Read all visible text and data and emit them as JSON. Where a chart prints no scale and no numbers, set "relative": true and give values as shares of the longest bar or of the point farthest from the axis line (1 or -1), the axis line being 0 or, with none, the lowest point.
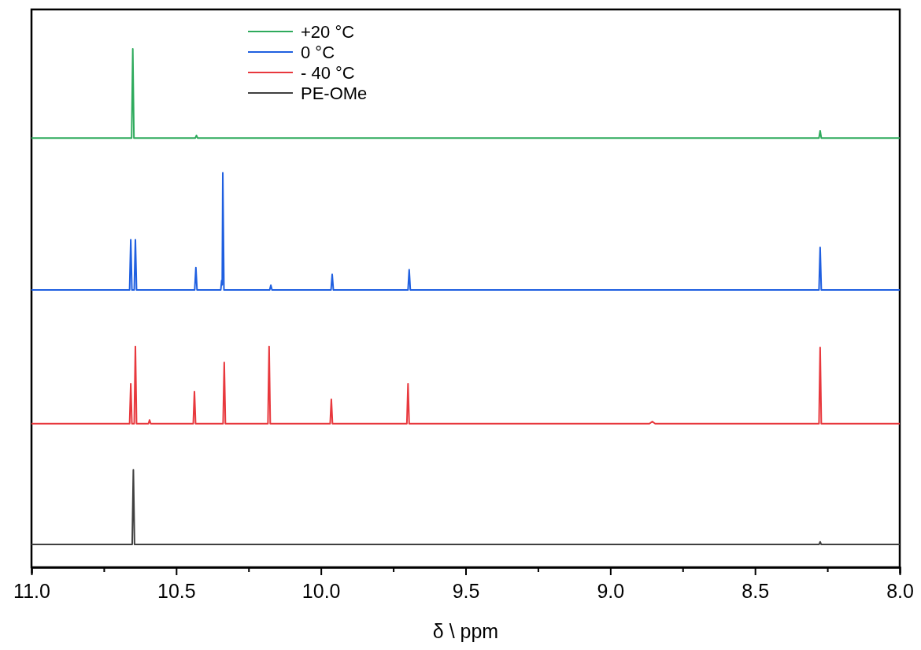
{
  "chart_data": {
    "type": "line",
    "xlabel": "δ \\ ppm",
    "relative": true,
    "tick_labels": "x",
    "legend": "top",
    "grid": false,
    "xlim": [
      11.0,
      8.0
    ],
    "xticks": [
      {
        "value": 11,
        "label": "11.0"
      },
      {
        "value": 10.75,
        "label": null
      },
      {
        "value": 10.5,
        "label": "10.5"
      },
      {
        "value": 10.25,
        "label": null
      },
      {
        "value": 10,
        "label": "10.0"
      },
      {
        "value": 9.75,
        "label": null
      },
      {
        "value": 9.5,
        "label": "9.5"
      },
      {
        "value": 9.25,
        "label": null
      },
      {
        "value": 9,
        "label": "9.0"
      },
      {
        "value": 8.75,
        "label": null
      },
      {
        "value": 8.5,
        "label": "8.5"
      },
      {
        "value": 8.25,
        "label": null
      },
      {
        "value": 8,
        "label": "8.0"
      }
    ],
    "series": [
      {
        "name": "+20 °C",
        "color": "#2eaa5c",
        "x": [
          11.0,
          10.654,
          10.65,
          10.646,
          10.434,
          10.43,
          10.426,
          8.279,
          8.275,
          8.271,
          8.0
        ],
        "values": [
          0.828,
          0.828,
          1,
          0.828,
          0.828,
          0.833,
          0.828,
          0.828,
          0.842,
          0.828,
          0.828
        ]
      },
      {
        "name": "0 °C",
        "color": "#1f5fe0",
        "x": [
          11.0,
          10.661,
          10.657,
          10.653,
          10.645,
          10.641,
          10.637,
          10.436,
          10.432,
          10.428,
          10.346,
          10.343,
          10.341,
          10.339,
          10.335,
          10.177,
          10.173,
          10.169,
          9.965,
          9.961,
          9.957,
          9.699,
          9.695,
          9.691,
          8.279,
          8.275,
          8.271,
          8.0
        ],
        "values": [
          0.535,
          0.535,
          0.632,
          0.535,
          0.535,
          0.632,
          0.535,
          0.535,
          0.578,
          0.535,
          0.535,
          0.553,
          0.545,
          0.761,
          0.535,
          0.535,
          0.544,
          0.535,
          0.535,
          0.565,
          0.535,
          0.535,
          0.574,
          0.535,
          0.535,
          0.617,
          0.535,
          0.535
        ]
      },
      {
        "name": "- 40 °C",
        "color": "#e8383d",
        "x": [
          11.0,
          10.661,
          10.657,
          10.653,
          10.645,
          10.641,
          10.637,
          10.596,
          10.592,
          10.588,
          10.441,
          10.437,
          10.433,
          10.338,
          10.334,
          10.33,
          10.183,
          10.179,
          10.175,
          9.968,
          9.964,
          9.96,
          9.703,
          9.699,
          9.695,
          8.865,
          8.855,
          8.845,
          8.279,
          8.275,
          8.271,
          8.0
        ],
        "values": [
          0.277,
          0.277,
          0.354,
          0.277,
          0.277,
          0.426,
          0.277,
          0.277,
          0.284,
          0.277,
          0.277,
          0.339,
          0.277,
          0.277,
          0.395,
          0.277,
          0.277,
          0.426,
          0.277,
          0.277,
          0.324,
          0.277,
          0.277,
          0.354,
          0.277,
          0.277,
          0.281,
          0.277,
          0.277,
          0.424,
          0.277,
          0.277
        ]
      },
      {
        "name": "PE-OMe",
        "color": "#404040",
        "x": [
          11.0,
          10.652,
          10.648,
          10.644,
          8.279,
          8.275,
          8.271,
          8.0
        ],
        "values": [
          0.044,
          0.044,
          0.188,
          0.044,
          0.044,
          0.049,
          0.044,
          0.044
        ]
      }
    ]
  }
}
